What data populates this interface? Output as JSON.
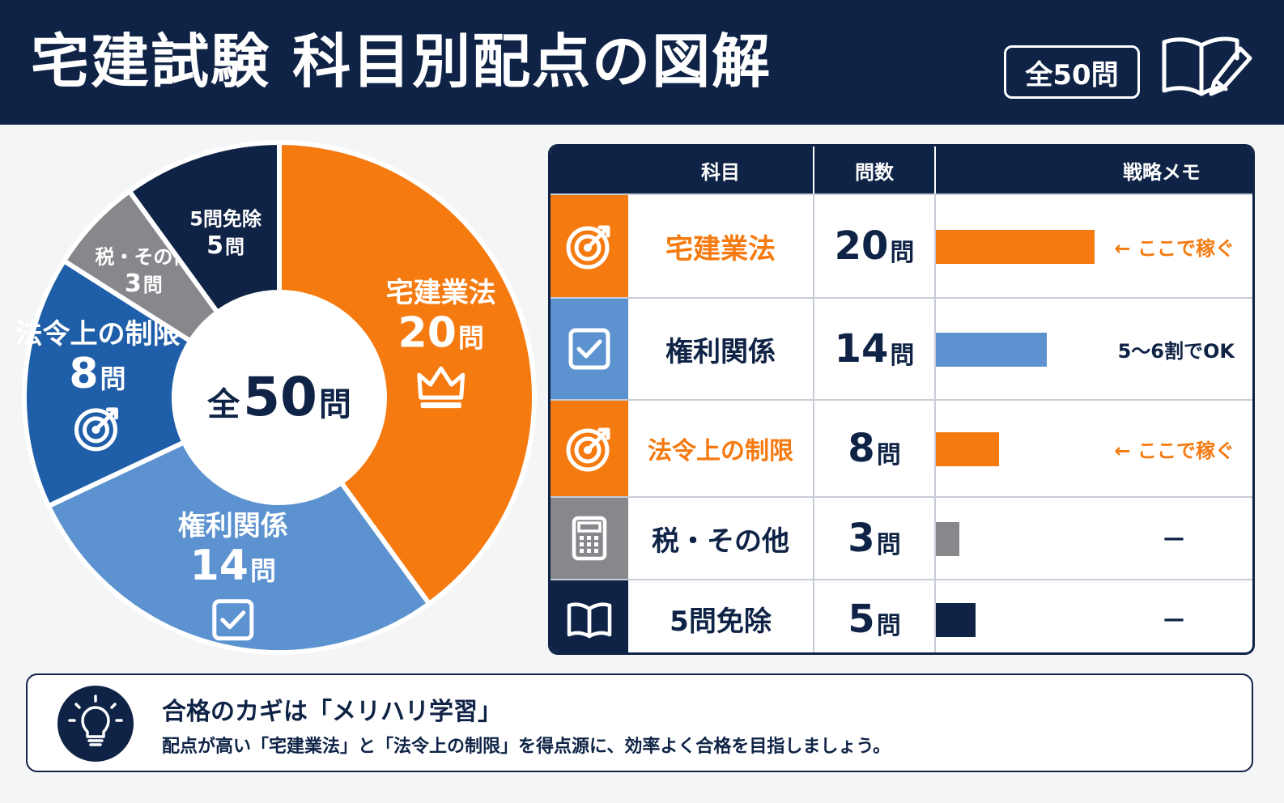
{
  "header": {
    "title": "宅建試験 科目別配点の図解",
    "total_badge": "全50問"
  },
  "colors": {
    "navy": "#0f2346",
    "orange": "#f57a10",
    "light_blue": "#5b92cf",
    "blue": "#1f5ea8",
    "gray": "#86888c"
  },
  "chart_data": {
    "type": "pie",
    "title": "",
    "center_label_prefix": "全",
    "center_label_number": "50",
    "center_label_unit": "問",
    "unit": "問",
    "slices": [
      {
        "label": "宅建業法",
        "value": 20,
        "color": "#f57a10",
        "icon": "crown-icon"
      },
      {
        "label": "権利関係",
        "value": 14,
        "color": "#5b92cf",
        "icon": "checkbox-icon"
      },
      {
        "label": "法令上の制限",
        "value": 8,
        "color": "#1f5ea8",
        "icon": "target-icon"
      },
      {
        "label": "税・その他",
        "value": 3,
        "color": "#86888c",
        "icon": ""
      },
      {
        "label": "5問免除",
        "value": 5,
        "color": "#0f2346",
        "icon": ""
      }
    ]
  },
  "table": {
    "headers": [
      "科目",
      "問数",
      "戦略メモ"
    ],
    "unit": "問",
    "rows": [
      {
        "subject": "宅建業法",
        "count": "20",
        "bar_value": 20,
        "memo": "← ここで稼ぐ",
        "accent": "#f57a10",
        "subject_color": "#f57a10",
        "memo_color": "#f57a10",
        "icon": "target-icon"
      },
      {
        "subject": "権利関係",
        "count": "14",
        "bar_value": 14,
        "memo": "5～6割でOK",
        "accent": "#5b92cf",
        "subject_color": "#0f2346",
        "memo_color": "#0f2346",
        "icon": "checkbox-icon"
      },
      {
        "subject": "法令上の制限",
        "count": "8",
        "bar_value": 8,
        "memo": "← ここで稼ぐ",
        "accent": "#f57a10",
        "subject_color": "#f57a10",
        "memo_color": "#f57a10",
        "icon": "target-icon"
      },
      {
        "subject": "税・その他",
        "count": "3",
        "bar_value": 3,
        "memo": "—",
        "accent": "#86888c",
        "subject_color": "#0f2346",
        "memo_color": "#0f2346",
        "icon": "calculator-icon"
      },
      {
        "subject": "5問免除",
        "count": "5",
        "bar_value": 5,
        "memo": "—",
        "accent": "#0f2346",
        "subject_color": "#0f2346",
        "memo_color": "#0f2346",
        "icon": "book-icon"
      }
    ]
  },
  "footer": {
    "title": "合格のカギは「メリハリ学習」",
    "text": "配点が高い「宅建業法」と「法令上の制限」を得点源に、効率よく合格を目指しましょう。",
    "icon": "lightbulb-icon"
  }
}
